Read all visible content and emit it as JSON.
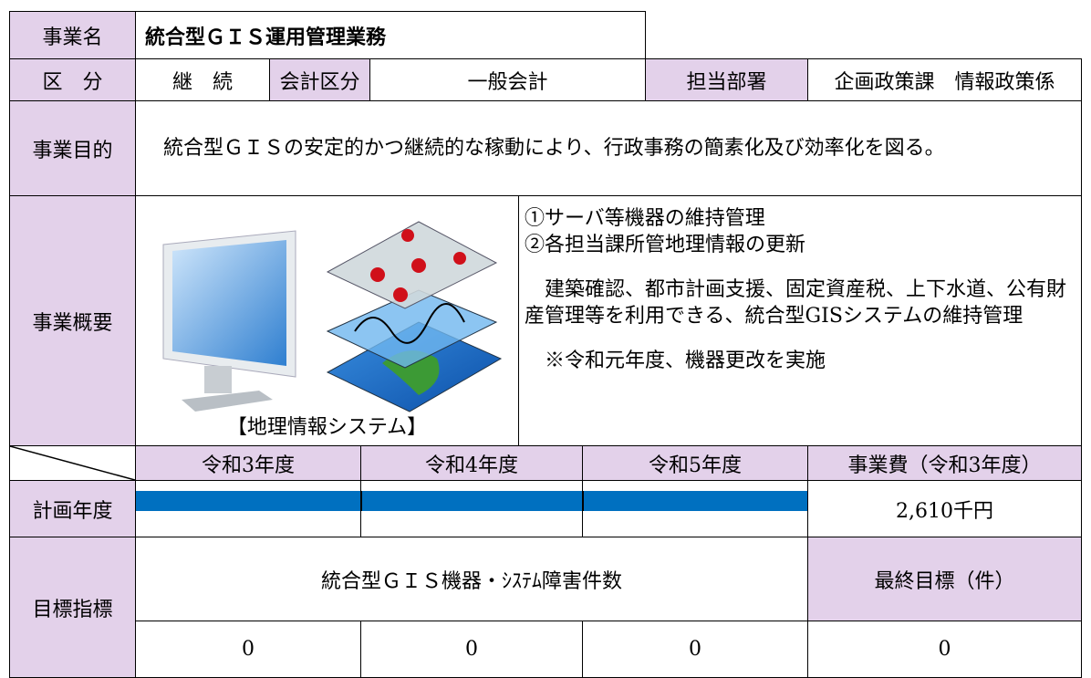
{
  "table": {
    "project_name_label": "事業名",
    "project_name": "統合型ＧＩＳ運用管理業務",
    "category_label": "区　分",
    "category": "継　続",
    "account_label": "会計区分",
    "account": "一般会計",
    "dept_label": "担当部署",
    "dept": "企画政策課　情報政策係",
    "purpose_label": "事業目的",
    "purpose": "　統合型ＧＩＳの安定的かつ継続的な稼動により、行政事務の簡素化及び効率化を図る。",
    "summary_label": "事業概要",
    "image_caption": "【地理情報システム】",
    "summary_lines": [
      "①サーバ等機器の維持管理",
      "②各担当課所管地理情報の更新",
      "　建築確認、都市計画支援、固定資産税、上下水道、公有財産管理等を利用できる、統合型GISシステムの維持管理",
      "　※令和元年度、機器更改を実施"
    ],
    "years": [
      "令和3年度",
      "令和4年度",
      "令和5年度"
    ],
    "cost_label": "事業費（令和3年度）",
    "plan_label": "計画年度",
    "cost": "2,610千円",
    "target_label": "目標指標",
    "indicator": "統合型ＧＩＳ機器・ｼｽﾃﾑ障害件数",
    "final_label": "最終目標（件）",
    "target_values": [
      "0",
      "0",
      "0",
      "0"
    ]
  }
}
